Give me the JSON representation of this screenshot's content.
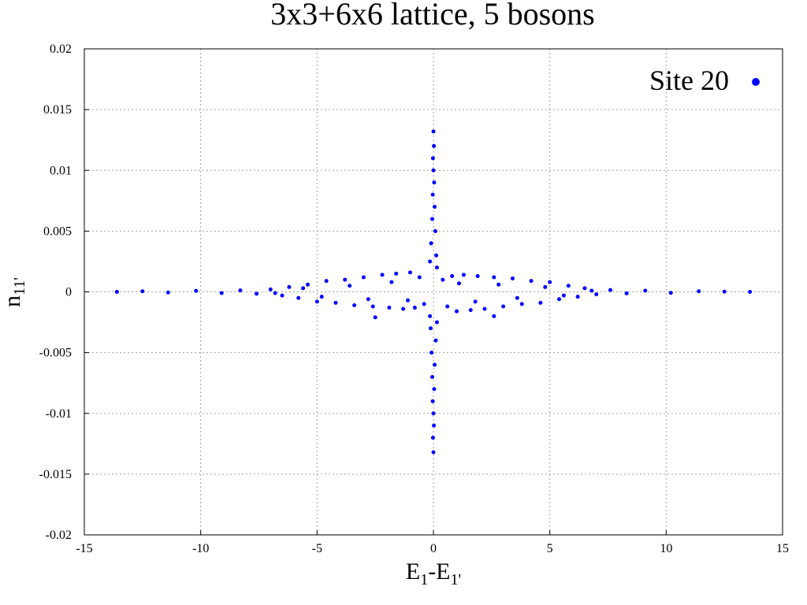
{
  "chart_data": {
    "type": "scatter",
    "title": "3x3+6x6 lattice, 5 bosons",
    "xlabel": [
      "E",
      "1",
      "-E",
      "1'"
    ],
    "ylabel": [
      "n",
      "11'"
    ],
    "xlim": [
      -15,
      15
    ],
    "xticks": [
      -15,
      -10,
      -5,
      0,
      5,
      10,
      15
    ],
    "ylim": [
      -0.02,
      0.02
    ],
    "yticks": [
      -0.02,
      -0.015,
      -0.01,
      -0.005,
      0,
      0.005,
      0.01,
      0.015,
      0.02
    ],
    "grid": true,
    "legend": "upper right",
    "series": [
      {
        "name": "Site 20",
        "color": "#0000ff",
        "x": [
          -13.6,
          -12.5,
          -11.4,
          -10.2,
          -9.1,
          -8.3,
          -7.6,
          -7.0,
          -6.5,
          -6.2,
          -5.8,
          -5.4,
          -5.0,
          -4.6,
          -4.2,
          -3.8,
          -3.4,
          -3.0,
          -2.6,
          -2.5,
          -2.2,
          -1.9,
          -1.6,
          -1.3,
          -1.0,
          -0.8,
          -0.6,
          -0.4,
          -4.8,
          -3.6,
          -2.8,
          -1.8,
          -1.1,
          -5.6,
          -6.8,
          0.4,
          0.6,
          0.8,
          1.0,
          1.3,
          1.6,
          1.9,
          2.2,
          2.6,
          2.6,
          3.0,
          3.4,
          3.8,
          4.2,
          4.6,
          5.0,
          5.4,
          5.8,
          6.2,
          6.5,
          7.0,
          7.6,
          8.3,
          9.1,
          10.2,
          11.4,
          12.5,
          13.6,
          4.8,
          3.6,
          2.8,
          1.8,
          1.1,
          5.6,
          6.8,
          0,
          0.02,
          -0.02,
          0,
          0.03,
          -0.03,
          0.05,
          -0.05,
          0.08,
          -0.1,
          0.12,
          -0.15,
          0.15,
          0,
          -0.02,
          0.02,
          0,
          -0.03,
          0.03,
          -0.05,
          0.05,
          -0.08,
          0.1,
          -0.12,
          0.15,
          -0.15
        ],
        "values": [
          0,
          5e-05,
          -5e-05,
          8e-05,
          -0.0001,
          0.00012,
          -0.00015,
          0.0002,
          -0.0003,
          0.0004,
          -0.0005,
          0.0006,
          -0.0008,
          0.0009,
          -0.0009,
          0.001,
          -0.0011,
          0.0012,
          -0.0012,
          -0.0021,
          0.0014,
          -0.0013,
          0.0015,
          -0.0014,
          0.0016,
          -0.0013,
          0.0012,
          -0.001,
          -0.0004,
          0.0005,
          -0.0006,
          0.0008,
          -0.0007,
          0.0003,
          -0.0001,
          0.001,
          -0.0012,
          0.0013,
          -0.0016,
          0.0014,
          -0.0015,
          0.0013,
          -0.0014,
          0.0012,
          -0.002,
          -0.0012,
          0.0011,
          -0.001,
          0.0009,
          -0.0009,
          0.0008,
          -0.0006,
          0.0005,
          -0.0004,
          0.0003,
          -0.0002,
          0.00015,
          -0.00012,
          0.0001,
          -8e-05,
          5e-05,
          2e-05,
          0,
          0.0004,
          -0.0005,
          0.0006,
          -0.0008,
          0.0007,
          -0.0003,
          0.0001,
          0.0132,
          0.012,
          0.011,
          0.01,
          0.009,
          0.008,
          0.007,
          0.006,
          0.005,
          0.004,
          0.003,
          0.0025,
          0.002,
          -0.0132,
          -0.012,
          -0.011,
          -0.01,
          -0.009,
          -0.008,
          -0.007,
          -0.006,
          -0.005,
          -0.004,
          -0.003,
          -0.0025,
          -0.002
        ]
      }
    ]
  }
}
